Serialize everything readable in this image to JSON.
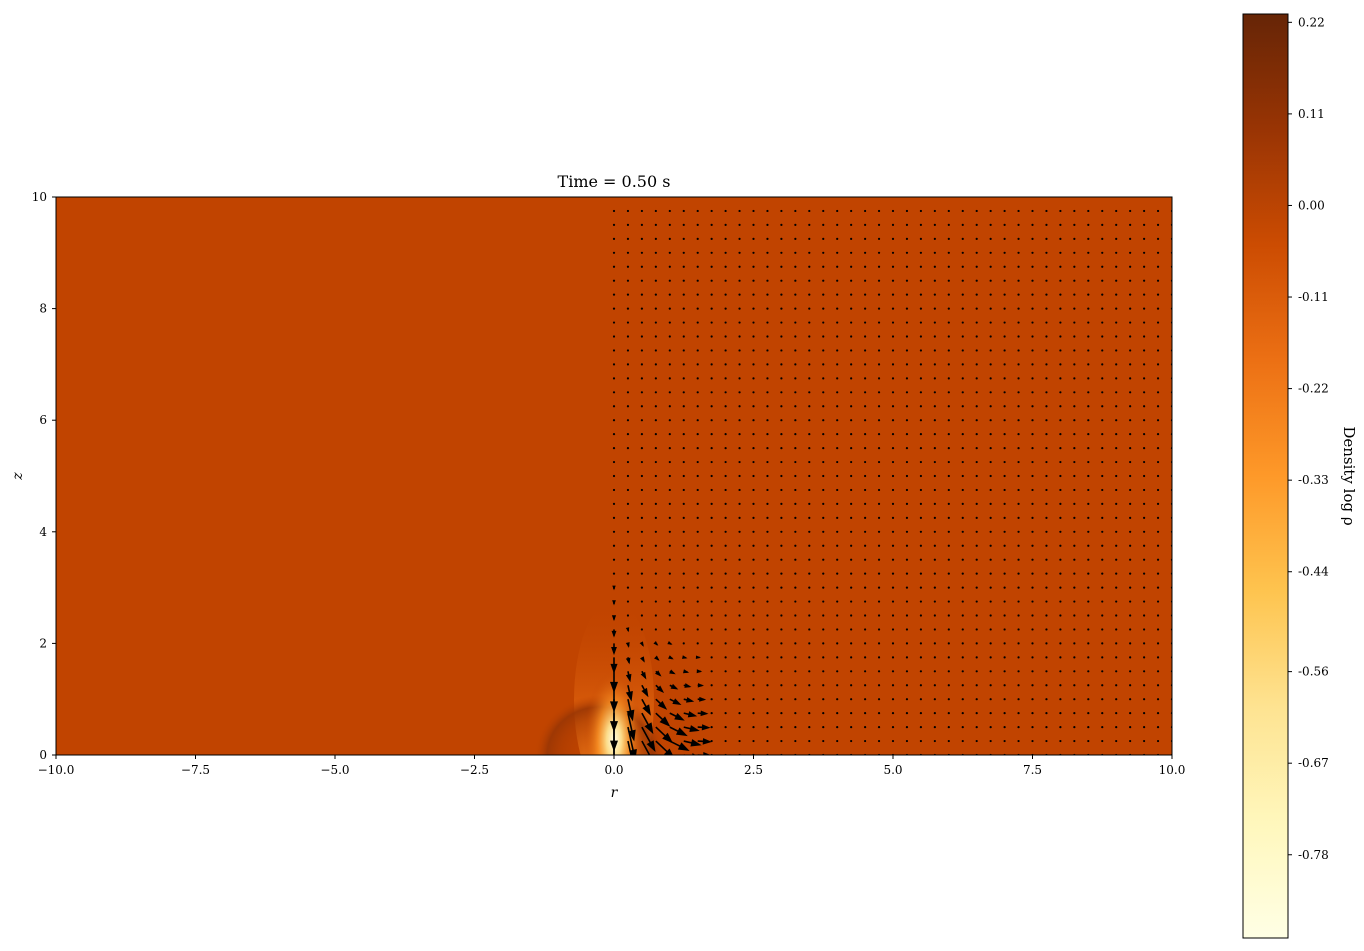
{
  "chart_data": {
    "type": "heatmap",
    "title": "Time = 0.50 s",
    "xlabel": "r",
    "ylabel": "z",
    "xlim": [
      -10.0,
      10.0
    ],
    "ylim": [
      0,
      10
    ],
    "x_ticks": [
      -10.0,
      -7.5,
      -5.0,
      -2.5,
      0.0,
      2.5,
      5.0,
      7.5,
      10.0
    ],
    "x_tick_labels": [
      "−10.0",
      "−7.5",
      "−5.0",
      "−2.5",
      "0.0",
      "2.5",
      "5.0",
      "7.5",
      "10.0"
    ],
    "y_ticks": [
      0,
      2,
      4,
      6,
      8,
      10
    ],
    "y_tick_labels": [
      "0",
      "2",
      "4",
      "6",
      "8",
      "10"
    ],
    "grid": false,
    "colormap": "YlOrBr",
    "background_color": "#c14400",
    "colorbar": {
      "label": "Density log ρ",
      "range": [
        -0.88,
        0.23
      ],
      "ticks": [
        0.22,
        0.11,
        0.0,
        -0.11,
        -0.22,
        -0.33,
        -0.44,
        -0.56,
        -0.67,
        -0.78
      ],
      "tick_labels": [
        "0.22",
        "0.11",
        "0.00",
        "-0.11",
        "-0.22",
        "-0.33",
        "-0.44",
        "-0.56",
        "-0.67",
        "-0.78"
      ],
      "colors": [
        "#ffffe5",
        "#fff7bc",
        "#fee391",
        "#fec44f",
        "#fe9929",
        "#ec7014",
        "#cc4c02",
        "#993404",
        "#662506"
      ]
    },
    "features": [
      {
        "name": "low-density jet column",
        "r": 0.0,
        "z_range": [
          0,
          2.5
        ],
        "min_log_rho": -0.85
      },
      {
        "name": "high-density shell",
        "r": -1.2,
        "z": 0.2,
        "log_rho": 0.06
      }
    ],
    "velocity_field": {
      "type": "quiver",
      "r_range": [
        0.0,
        10.0
      ],
      "z_range": [
        0.0,
        9.8
      ],
      "spacing": 0.25,
      "max_arrow_r": 1.5,
      "direction": "downward inflow near axis, outward radial near z=0"
    }
  }
}
